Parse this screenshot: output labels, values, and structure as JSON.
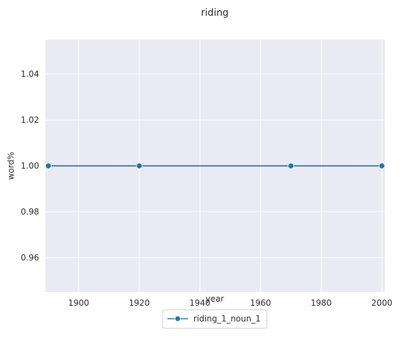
{
  "chart_data": {
    "type": "line",
    "title": "riding",
    "xlabel": "year",
    "ylabel": "word%",
    "xlim": [
      1889,
      2001
    ],
    "ylim": [
      0.945,
      1.055
    ],
    "xticks": [
      1900,
      1920,
      1940,
      1960,
      1980,
      2000
    ],
    "yticks": [
      0.96,
      0.98,
      1.0,
      1.02,
      1.04
    ],
    "ytick_labels": [
      "0.96",
      "0.98",
      "1.00",
      "1.02",
      "1.04"
    ],
    "grid": true,
    "legend_position": "bottom-center",
    "series": [
      {
        "name": "riding_1_noun_1",
        "color": "#1f77b4",
        "marker": "circle",
        "x": [
          1890,
          1920,
          1970,
          2000
        ],
        "y": [
          1.0,
          1.0,
          1.0,
          1.0
        ]
      }
    ]
  }
}
